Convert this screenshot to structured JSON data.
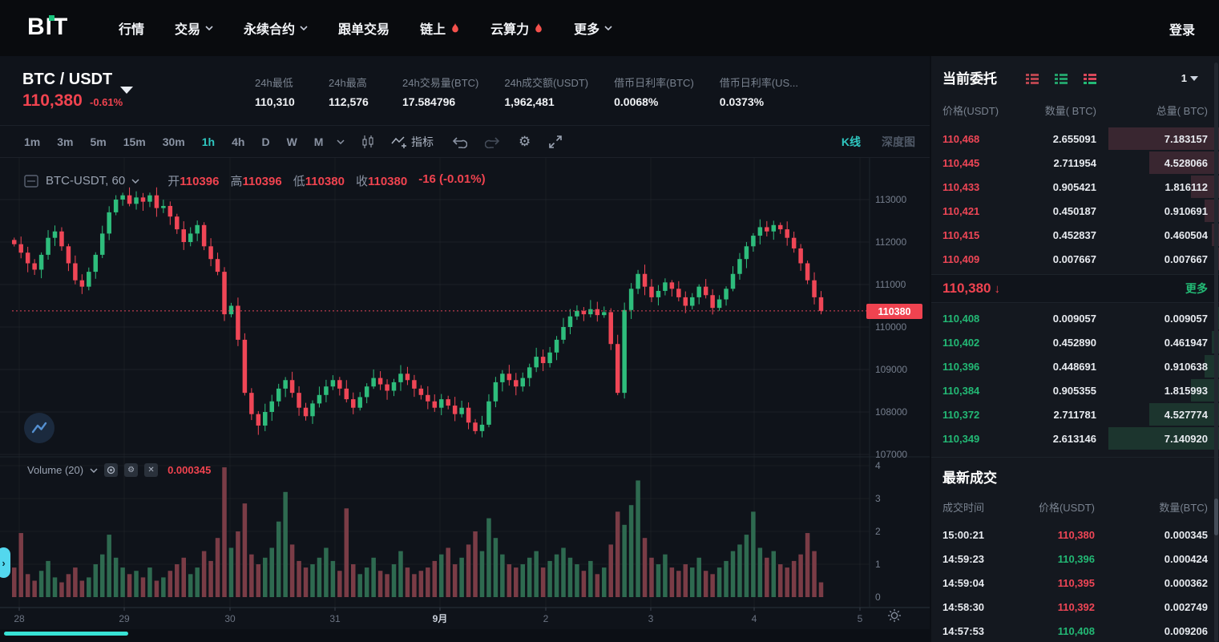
{
  "nav": {
    "logo": "BIT",
    "items": [
      {
        "label": "行情",
        "caret": false,
        "fire": false
      },
      {
        "label": "交易",
        "caret": true,
        "fire": false
      },
      {
        "label": "永续合约",
        "caret": true,
        "fire": false
      },
      {
        "label": "跟单交易",
        "caret": false,
        "fire": false
      },
      {
        "label": "链上",
        "caret": false,
        "fire": true
      },
      {
        "label": "云算力",
        "caret": false,
        "fire": true
      },
      {
        "label": "更多",
        "caret": true,
        "fire": false
      }
    ],
    "login_label": "登录"
  },
  "symbol": {
    "pair": "BTC / USDT",
    "price": "110,380",
    "change": "-0.61%",
    "stats": [
      {
        "label": "24h最低",
        "value": "110,310"
      },
      {
        "label": "24h最高",
        "value": "112,576"
      },
      {
        "label": "24h交易量(BTC)",
        "value": "17.584796"
      },
      {
        "label": "24h成交额(USDT)",
        "value": "1,962,481"
      },
      {
        "label": "借币日利率(BTC)",
        "value": "0.0068%"
      },
      {
        "label": "借币日利率(US...",
        "value": "0.0373%"
      }
    ]
  },
  "toolbar": {
    "intervals": [
      "1m",
      "3m",
      "5m",
      "15m",
      "30m",
      "1h",
      "4h",
      "D",
      "W",
      "M"
    ],
    "active_interval": "1h",
    "indicator_label": "指标",
    "kline_label": "K线",
    "depth_label": "深度图"
  },
  "chart_data": {
    "type": "candlestick",
    "legend": {
      "symbol": "BTC-USDT",
      "interval": "60",
      "open_label": "开",
      "open": "110396",
      "high_label": "高",
      "high": "110396",
      "low_label": "低",
      "low": "110380",
      "close_label": "收",
      "close": "110380",
      "change": "-16 (-0.01%)"
    },
    "last_price": "110380",
    "y_ticks": [
      "113000",
      "112000",
      "111000",
      "110000",
      "109000",
      "108000",
      "107000"
    ],
    "ylim": [
      106700,
      113980
    ],
    "x_ticks": [
      "28",
      "29",
      "30",
      "31",
      "9月",
      "2",
      "3",
      "4",
      "5"
    ],
    "first_open": 112050,
    "closes": [
      111950,
      111750,
      111500,
      111350,
      111700,
      112100,
      112250,
      111900,
      111500,
      111100,
      110950,
      111300,
      111700,
      112200,
      112700,
      113000,
      113100,
      112900,
      113050,
      112950,
      113100,
      112800,
      112850,
      112600,
      112300,
      112000,
      112200,
      112400,
      111900,
      111600,
      111300,
      110300,
      110500,
      109700,
      108450,
      107950,
      107680,
      108000,
      108250,
      108550,
      108750,
      108450,
      108100,
      107900,
      108200,
      108400,
      108600,
      108750,
      108550,
      108300,
      108100,
      108350,
      108600,
      108800,
      108650,
      108500,
      108700,
      108900,
      108750,
      108550,
      108400,
      108250,
      108100,
      108300,
      108150,
      107950,
      108100,
      107750,
      107550,
      107700,
      108250,
      108700,
      108900,
      108750,
      108600,
      108800,
      109050,
      109300,
      109150,
      109400,
      109700,
      110000,
      110250,
      110380,
      110300,
      110420,
      110280,
      110350,
      109600,
      108450,
      110400,
      110900,
      111250,
      110950,
      110700,
      110850,
      111050,
      110900,
      110700,
      110500,
      110700,
      110950,
      110750,
      110450,
      110650,
      110900,
      111250,
      111600,
      111900,
      112150,
      112350,
      112250,
      112400,
      112300,
      112100,
      111850,
      111500,
      111100,
      110700,
      110380
    ],
    "volume": {
      "label": "Volume (20)",
      "value": "0.000345",
      "ticks": [
        "4",
        "3",
        "2",
        "1",
        "0"
      ],
      "values": [
        0.9,
        1.95,
        0.7,
        0.5,
        0.8,
        1.1,
        0.6,
        0.45,
        0.7,
        0.9,
        0.5,
        0.6,
        1.0,
        1.3,
        1.9,
        1.2,
        0.9,
        0.7,
        0.8,
        0.6,
        0.9,
        0.5,
        0.6,
        0.8,
        1.0,
        1.2,
        0.7,
        0.9,
        1.4,
        1.1,
        1.8,
        3.95,
        1.5,
        2.0,
        2.85,
        1.3,
        1.0,
        1.2,
        1.5,
        2.3,
        3.2,
        1.6,
        1.1,
        0.9,
        1.0,
        1.2,
        1.5,
        1.1,
        0.8,
        2.7,
        1.0,
        0.7,
        0.9,
        1.2,
        0.8,
        0.7,
        1.0,
        1.4,
        0.9,
        0.7,
        0.8,
        0.9,
        1.1,
        1.3,
        1.5,
        1.0,
        1.2,
        1.6,
        2.0,
        1.4,
        2.4,
        1.8,
        1.3,
        1.0,
        0.9,
        1.0,
        1.2,
        1.4,
        0.9,
        1.1,
        1.3,
        1.5,
        1.2,
        1.0,
        0.8,
        1.1,
        0.7,
        0.9,
        1.6,
        2.6,
        2.2,
        2.8,
        3.55,
        1.8,
        1.2,
        1.0,
        1.3,
        0.9,
        0.8,
        1.0,
        0.9,
        1.2,
        0.8,
        0.7,
        0.9,
        1.1,
        1.4,
        1.6,
        1.9,
        2.6,
        1.5,
        1.2,
        1.4,
        1.0,
        0.9,
        1.1,
        1.3,
        1.95,
        1.4,
        0.45
      ]
    }
  },
  "orderbook": {
    "title": "当前委托",
    "depth_select": "1",
    "columns": [
      "价格(USDT)",
      "数量( BTC)",
      "总量( BTC)"
    ],
    "asks": [
      {
        "price": "110,468",
        "qty": "2.655091",
        "total": "7.183157",
        "depth": 1.0
      },
      {
        "price": "110,445",
        "qty": "2.711954",
        "total": "4.528066",
        "depth": 0.63
      },
      {
        "price": "110,433",
        "qty": "0.905421",
        "total": "1.816112",
        "depth": 0.253
      },
      {
        "price": "110,421",
        "qty": "0.450187",
        "total": "0.910691",
        "depth": 0.127
      },
      {
        "price": "110,415",
        "qty": "0.452837",
        "total": "0.460504",
        "depth": 0.064
      },
      {
        "price": "110,409",
        "qty": "0.007667",
        "total": "0.007667",
        "depth": 0.01
      }
    ],
    "mid": {
      "price": "110,380",
      "arrow": "↓",
      "more_label": "更多"
    },
    "bids": [
      {
        "price": "110,408",
        "qty": "0.009057",
        "total": "0.009057",
        "depth": 0.01
      },
      {
        "price": "110,402",
        "qty": "0.452890",
        "total": "0.461947",
        "depth": 0.065
      },
      {
        "price": "110,396",
        "qty": "0.448691",
        "total": "0.910638",
        "depth": 0.128
      },
      {
        "price": "110,384",
        "qty": "0.905355",
        "total": "1.815993",
        "depth": 0.254
      },
      {
        "price": "110,372",
        "qty": "2.711781",
        "total": "4.527774",
        "depth": 0.634
      },
      {
        "price": "110,349",
        "qty": "2.613146",
        "total": "7.140920",
        "depth": 1.0
      }
    ]
  },
  "trades": {
    "title": "最新成交",
    "columns": [
      "成交时间",
      "价格(USDT)",
      "数量(BTC)"
    ],
    "rows": [
      {
        "time": "15:00:21",
        "price": "110,380",
        "dir": "down",
        "qty": "0.000345"
      },
      {
        "time": "14:59:23",
        "price": "110,396",
        "dir": "up",
        "qty": "0.000424"
      },
      {
        "time": "14:59:04",
        "price": "110,395",
        "dir": "down",
        "qty": "0.000362"
      },
      {
        "time": "14:58:30",
        "price": "110,392",
        "dir": "down",
        "qty": "0.002749"
      },
      {
        "time": "14:57:53",
        "price": "110,408",
        "dir": "up",
        "qty": "0.009206"
      }
    ]
  },
  "colors": {
    "up": "#2ebd7c",
    "down": "#ef4656",
    "vol_up": "#2e6a50",
    "vol_down": "#7a3c46",
    "accent": "#2fc6c0",
    "price_line": "#e0455a",
    "tag_bg": "#ef4350",
    "fire": "#f4514c"
  }
}
